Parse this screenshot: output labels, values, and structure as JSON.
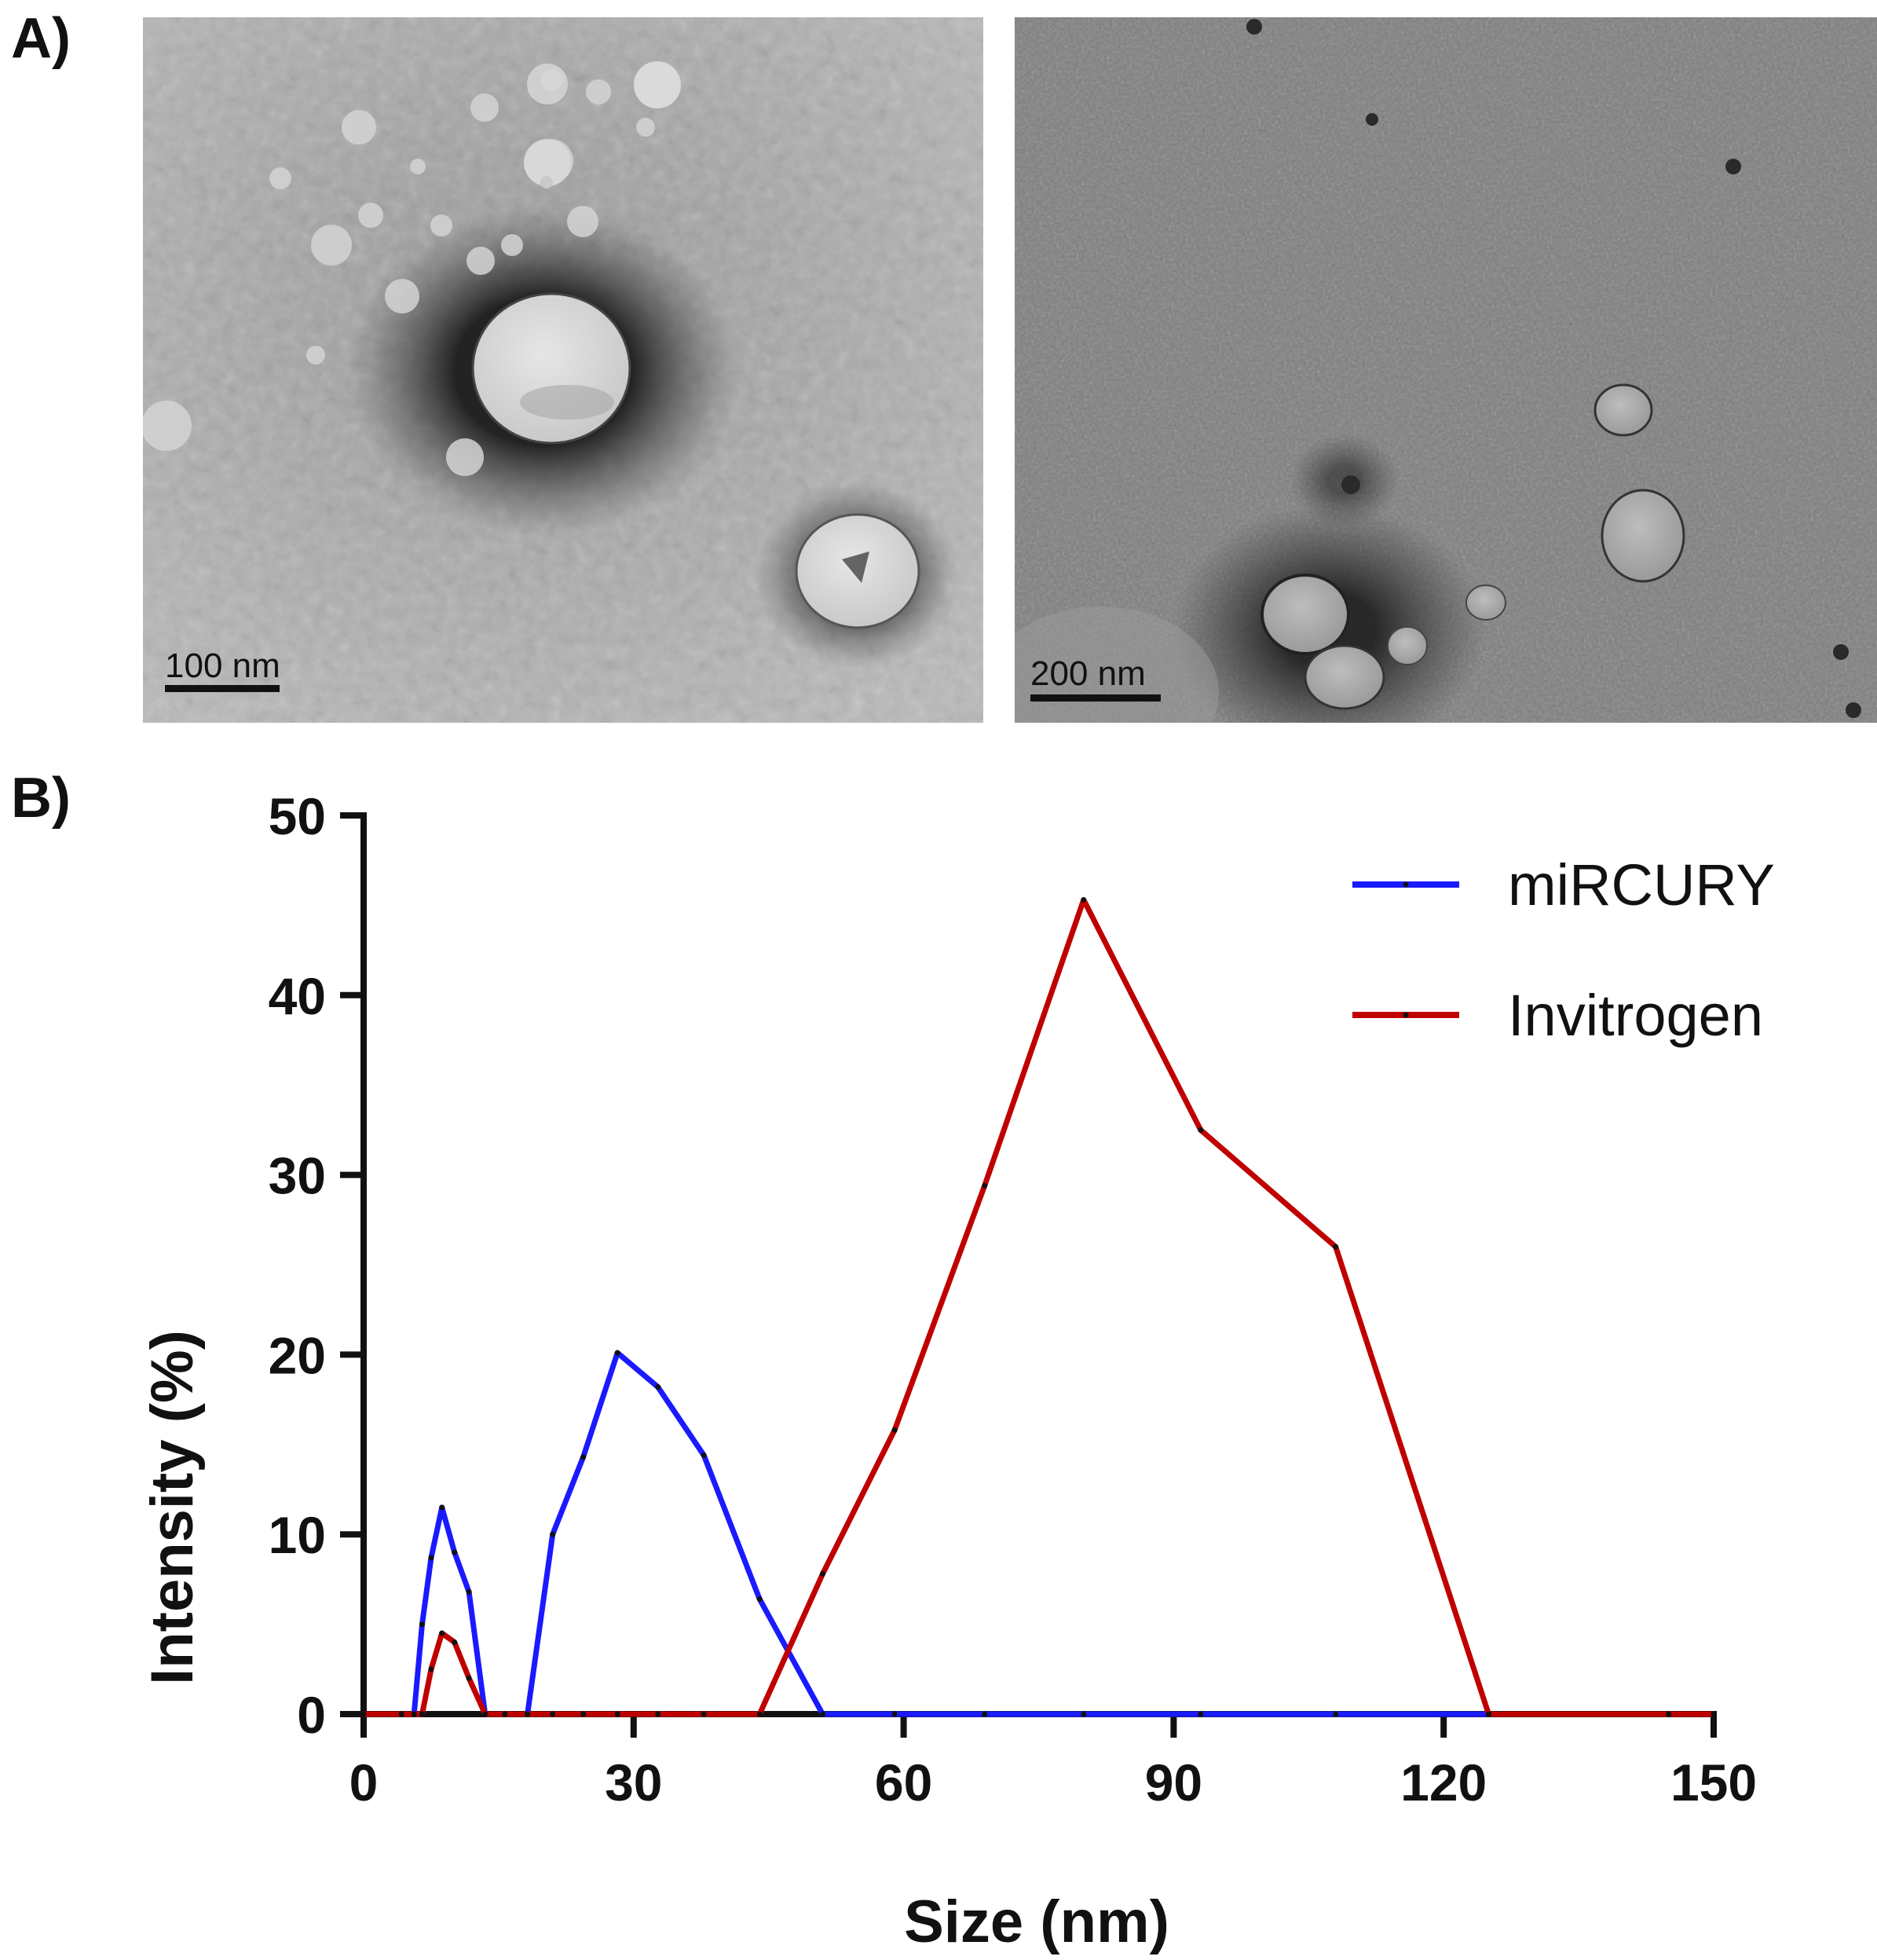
{
  "panel_labels": {
    "a": "A)",
    "b": "B)"
  },
  "micrographs": [
    {
      "scale_bar_label": "100 nm"
    },
    {
      "scale_bar_label": "200 nm"
    }
  ],
  "chart_data": {
    "type": "line",
    "xlabel": "Size (nm)",
    "ylabel": "Intensity (%)",
    "xlim": [
      0,
      150
    ],
    "ylim": [
      0,
      50
    ],
    "xticks": [
      0,
      30,
      60,
      90,
      120,
      150
    ],
    "yticks": [
      0,
      10,
      20,
      30,
      40,
      50
    ],
    "grid": false,
    "legend_position": "top-right",
    "series": [
      {
        "name": "miRCURY",
        "color": "#1a1aff",
        "points": [
          [
            0,
            0
          ],
          [
            4.2,
            0
          ],
          [
            5.6,
            0
          ],
          [
            6.5,
            5
          ],
          [
            7.5,
            8.7
          ],
          [
            8.7,
            11.5
          ],
          [
            10.1,
            9
          ],
          [
            11.7,
            6.8
          ],
          [
            13.5,
            0
          ],
          [
            15.7,
            0
          ],
          [
            18.2,
            0
          ],
          [
            21.0,
            10
          ],
          [
            24.4,
            14.3
          ],
          [
            28.2,
            20.1
          ],
          [
            32.7,
            18.2
          ],
          [
            37.8,
            14.4
          ],
          [
            44.0,
            6.4
          ],
          [
            51.0,
            0
          ],
          [
            59.0,
            0
          ],
          [
            69.0,
            0
          ],
          [
            80.0,
            0
          ],
          [
            93.0,
            0
          ],
          [
            108.0,
            0
          ],
          [
            125.0,
            0
          ],
          [
            145.0,
            0
          ],
          [
            150.0,
            0
          ]
        ]
      },
      {
        "name": "Invitrogen",
        "color": "#c00000",
        "points": [
          [
            0,
            0
          ],
          [
            4.2,
            0
          ],
          [
            5.6,
            0
          ],
          [
            6.5,
            0
          ],
          [
            7.5,
            2.5
          ],
          [
            8.7,
            4.5
          ],
          [
            10.1,
            4
          ],
          [
            11.7,
            2
          ],
          [
            13.5,
            0
          ],
          [
            15.7,
            0
          ],
          [
            18.2,
            0
          ],
          [
            21.0,
            0
          ],
          [
            24.4,
            0
          ],
          [
            28.2,
            0
          ],
          [
            32.7,
            0
          ],
          [
            37.8,
            0
          ],
          [
            44.0,
            0
          ],
          [
            51.0,
            7.8
          ],
          [
            59.0,
            15.8
          ],
          [
            69.0,
            29.4
          ],
          [
            80.0,
            45.3
          ],
          [
            93.0,
            32.5
          ],
          [
            108.0,
            26
          ],
          [
            125.0,
            0
          ],
          [
            145.0,
            0
          ],
          [
            150.0,
            0
          ]
        ]
      }
    ]
  }
}
